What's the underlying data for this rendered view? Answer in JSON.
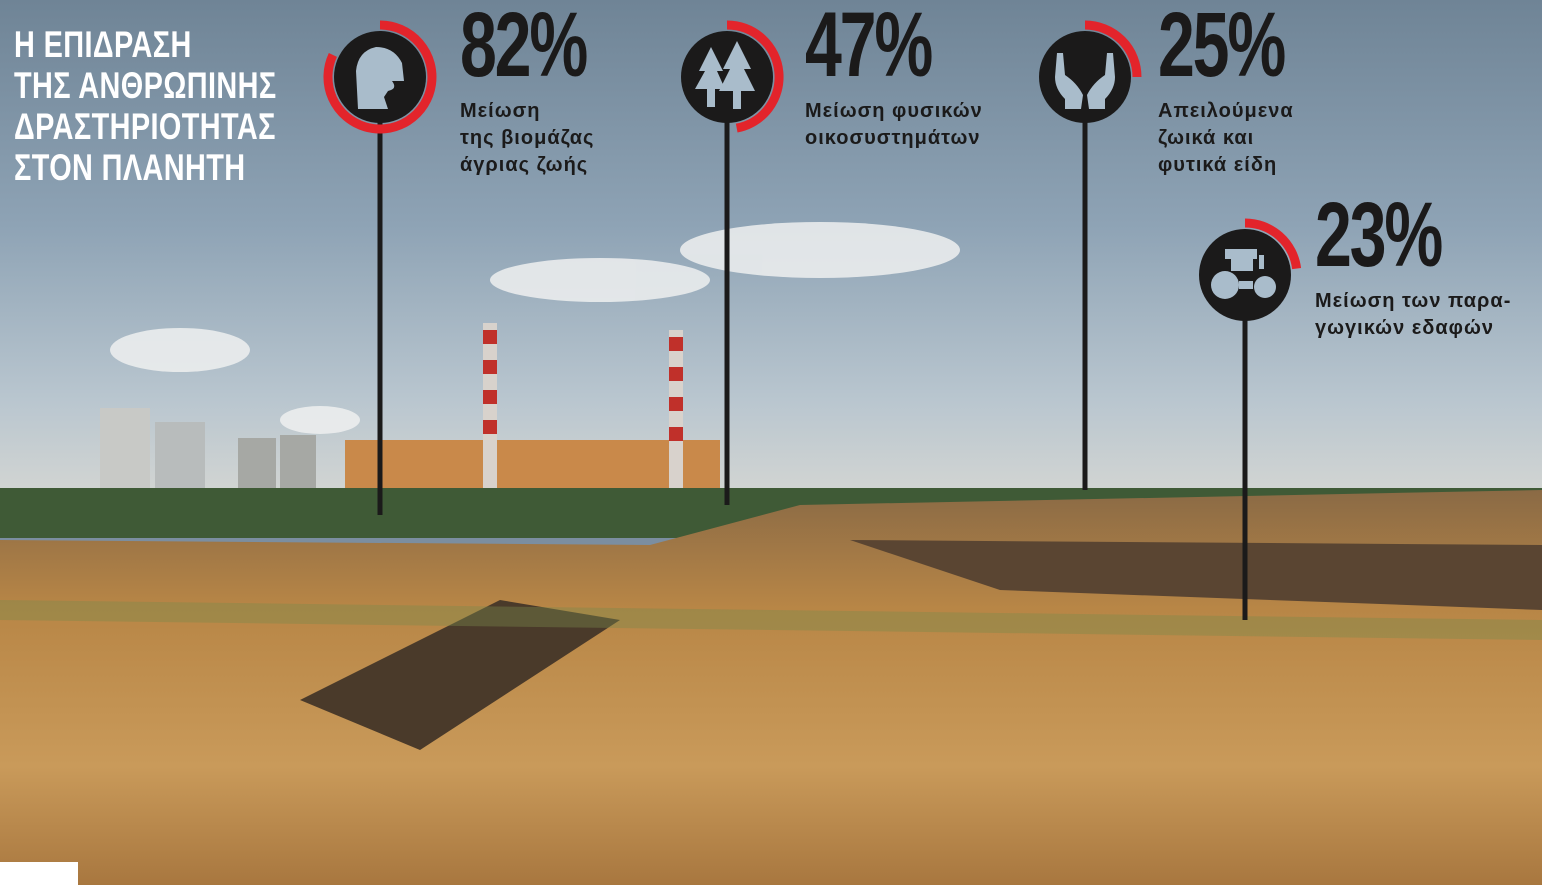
{
  "title_lines": [
    "Η ΕΠΙΔΡΑΣΗ",
    "ΤΗΣ ΑΝΘΡΩΠΙΝΗΣ",
    "ΔΡΑΣΤΗΡΙΟΤΗΤΑΣ",
    "ΣΤΟΝ ΠΛΑΝΗΤΗ"
  ],
  "colors": {
    "accent": "#e3242b",
    "icon_bg": "#1b1a1a",
    "icon_fg": "#a9bccb",
    "title": "#ffffff"
  },
  "stats": [
    {
      "value": 82,
      "label": "82%",
      "icon": "lion-icon",
      "desc": [
        "Μείωση",
        "της βιομάζας",
        "άγριας ζωής"
      ]
    },
    {
      "value": 47,
      "label": "47%",
      "icon": "trees-icon",
      "desc": [
        "Μείωση φυσικών",
        "οικοσυστημάτων"
      ]
    },
    {
      "value": 25,
      "label": "25%",
      "icon": "hands-icon",
      "desc": [
        "Απειλούμενα",
        "ζωικά και",
        "φυτικά είδη"
      ]
    },
    {
      "value": 23,
      "label": "23%",
      "icon": "tractor-icon",
      "desc": [
        "Μείωση των παρα-",
        "γωγικών εδαφών"
      ]
    }
  ]
}
